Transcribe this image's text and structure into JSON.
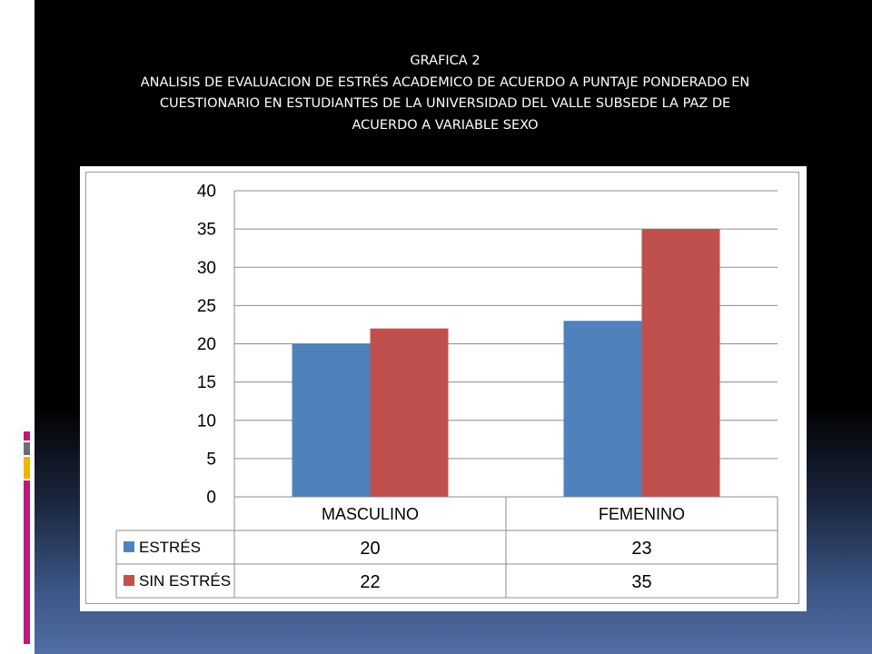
{
  "title_lines": [
    "GRAFICA 2",
    "ANALISIS DE EVALUACION DE ESTRÉS ACADEMICO DE ACUERDO A PUNTAJE PONDERADO EN",
    "CUESTIONARIO EN ESTUDIANTES DE LA UNIVERSIDAD DEL VALLE SUBSEDE LA PAZ DE",
    "ACUERDO A VARIABLE SEXO"
  ],
  "colors": {
    "estres": "#4f81bd",
    "sin_estres": "#c0504d",
    "accent_pink": "#c0177a",
    "accent_gray": "#6d6d6d",
    "accent_yellow": "#f0b400"
  },
  "chart_data": {
    "type": "bar",
    "categories": [
      "MASCULINO",
      "FEMENINO"
    ],
    "series": [
      {
        "name": "ESTRÉS",
        "values": [
          20,
          23
        ],
        "color": "#4f81bd"
      },
      {
        "name": "SIN ESTRÉS",
        "values": [
          22,
          35
        ],
        "color": "#c0504d"
      }
    ],
    "ylim": [
      0,
      40
    ],
    "yticks": [
      0,
      5,
      10,
      15,
      20,
      25,
      30,
      35,
      40
    ],
    "grid": true,
    "legend": "data-table-below",
    "data_table": true
  }
}
